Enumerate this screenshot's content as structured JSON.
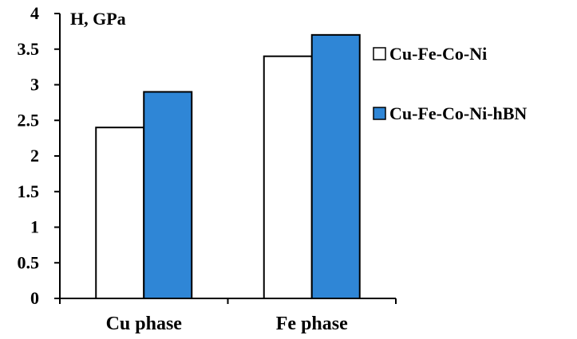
{
  "chart_data": {
    "type": "bar",
    "title": "",
    "xlabel": "",
    "ylabel": "H, GPa",
    "categories": [
      "Cu phase",
      "Fe phase"
    ],
    "series": [
      {
        "name": "Cu-Fe-Co-Ni",
        "values": [
          2.4,
          3.4
        ],
        "color": "#ffffff"
      },
      {
        "name": "Cu-Fe-Co-Ni-hBN",
        "values": [
          2.9,
          3.7
        ],
        "color": "#2f86d6"
      }
    ],
    "ylim": [
      0,
      4
    ],
    "yticks": [
      "0",
      "0.5",
      "1",
      "1.5",
      "2",
      "2.5",
      "3",
      "3.5",
      "4"
    ],
    "grid": false,
    "legend_position": "right"
  }
}
